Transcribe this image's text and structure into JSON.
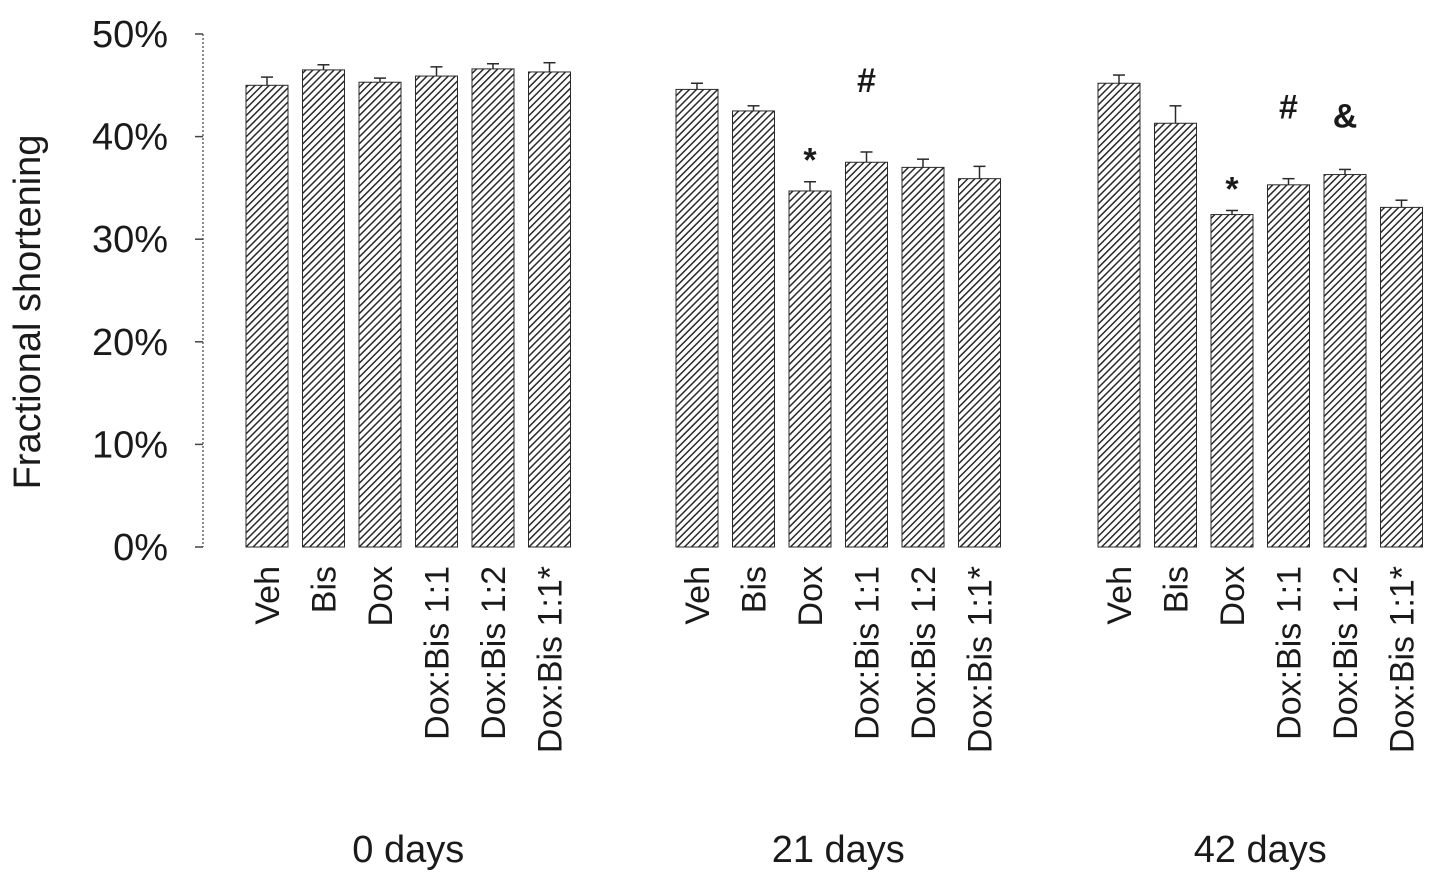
{
  "chart_data": {
    "type": "bar",
    "title": "",
    "ylabel": "Fractional shortening",
    "ylim": [
      0,
      50
    ],
    "yticks": [
      "0%",
      "10%",
      "20%",
      "30%",
      "40%",
      "50%"
    ],
    "categories": [
      "Veh",
      "Bis",
      "Dox",
      "Dox:Bis 1:1",
      "Dox:Bis 1:2",
      "Dox:Bis 1:1*"
    ],
    "groups": [
      {
        "label": "0 days",
        "values": [
          45.0,
          46.5,
          45.3,
          45.9,
          46.6,
          46.3
        ],
        "errors": [
          0.8,
          0.5,
          0.4,
          0.9,
          0.5,
          0.9
        ],
        "annotations": [
          "",
          "",
          "",
          "",
          "",
          ""
        ]
      },
      {
        "label": "21 days",
        "values": [
          44.6,
          42.5,
          34.7,
          37.5,
          37.0,
          35.9
        ],
        "errors": [
          0.6,
          0.5,
          0.9,
          1.0,
          0.8,
          1.2
        ],
        "annotations": [
          "",
          "",
          "*",
          "#",
          "",
          ""
        ]
      },
      {
        "label": "42 days",
        "values": [
          45.2,
          41.3,
          32.4,
          35.3,
          36.3,
          33.1
        ],
        "errors": [
          0.8,
          1.7,
          0.4,
          0.6,
          0.5,
          0.7
        ],
        "annotations": [
          "",
          "",
          "*",
          "#",
          "&",
          ""
        ]
      }
    ],
    "grid": false,
    "pattern": "diagonal-hatch"
  }
}
